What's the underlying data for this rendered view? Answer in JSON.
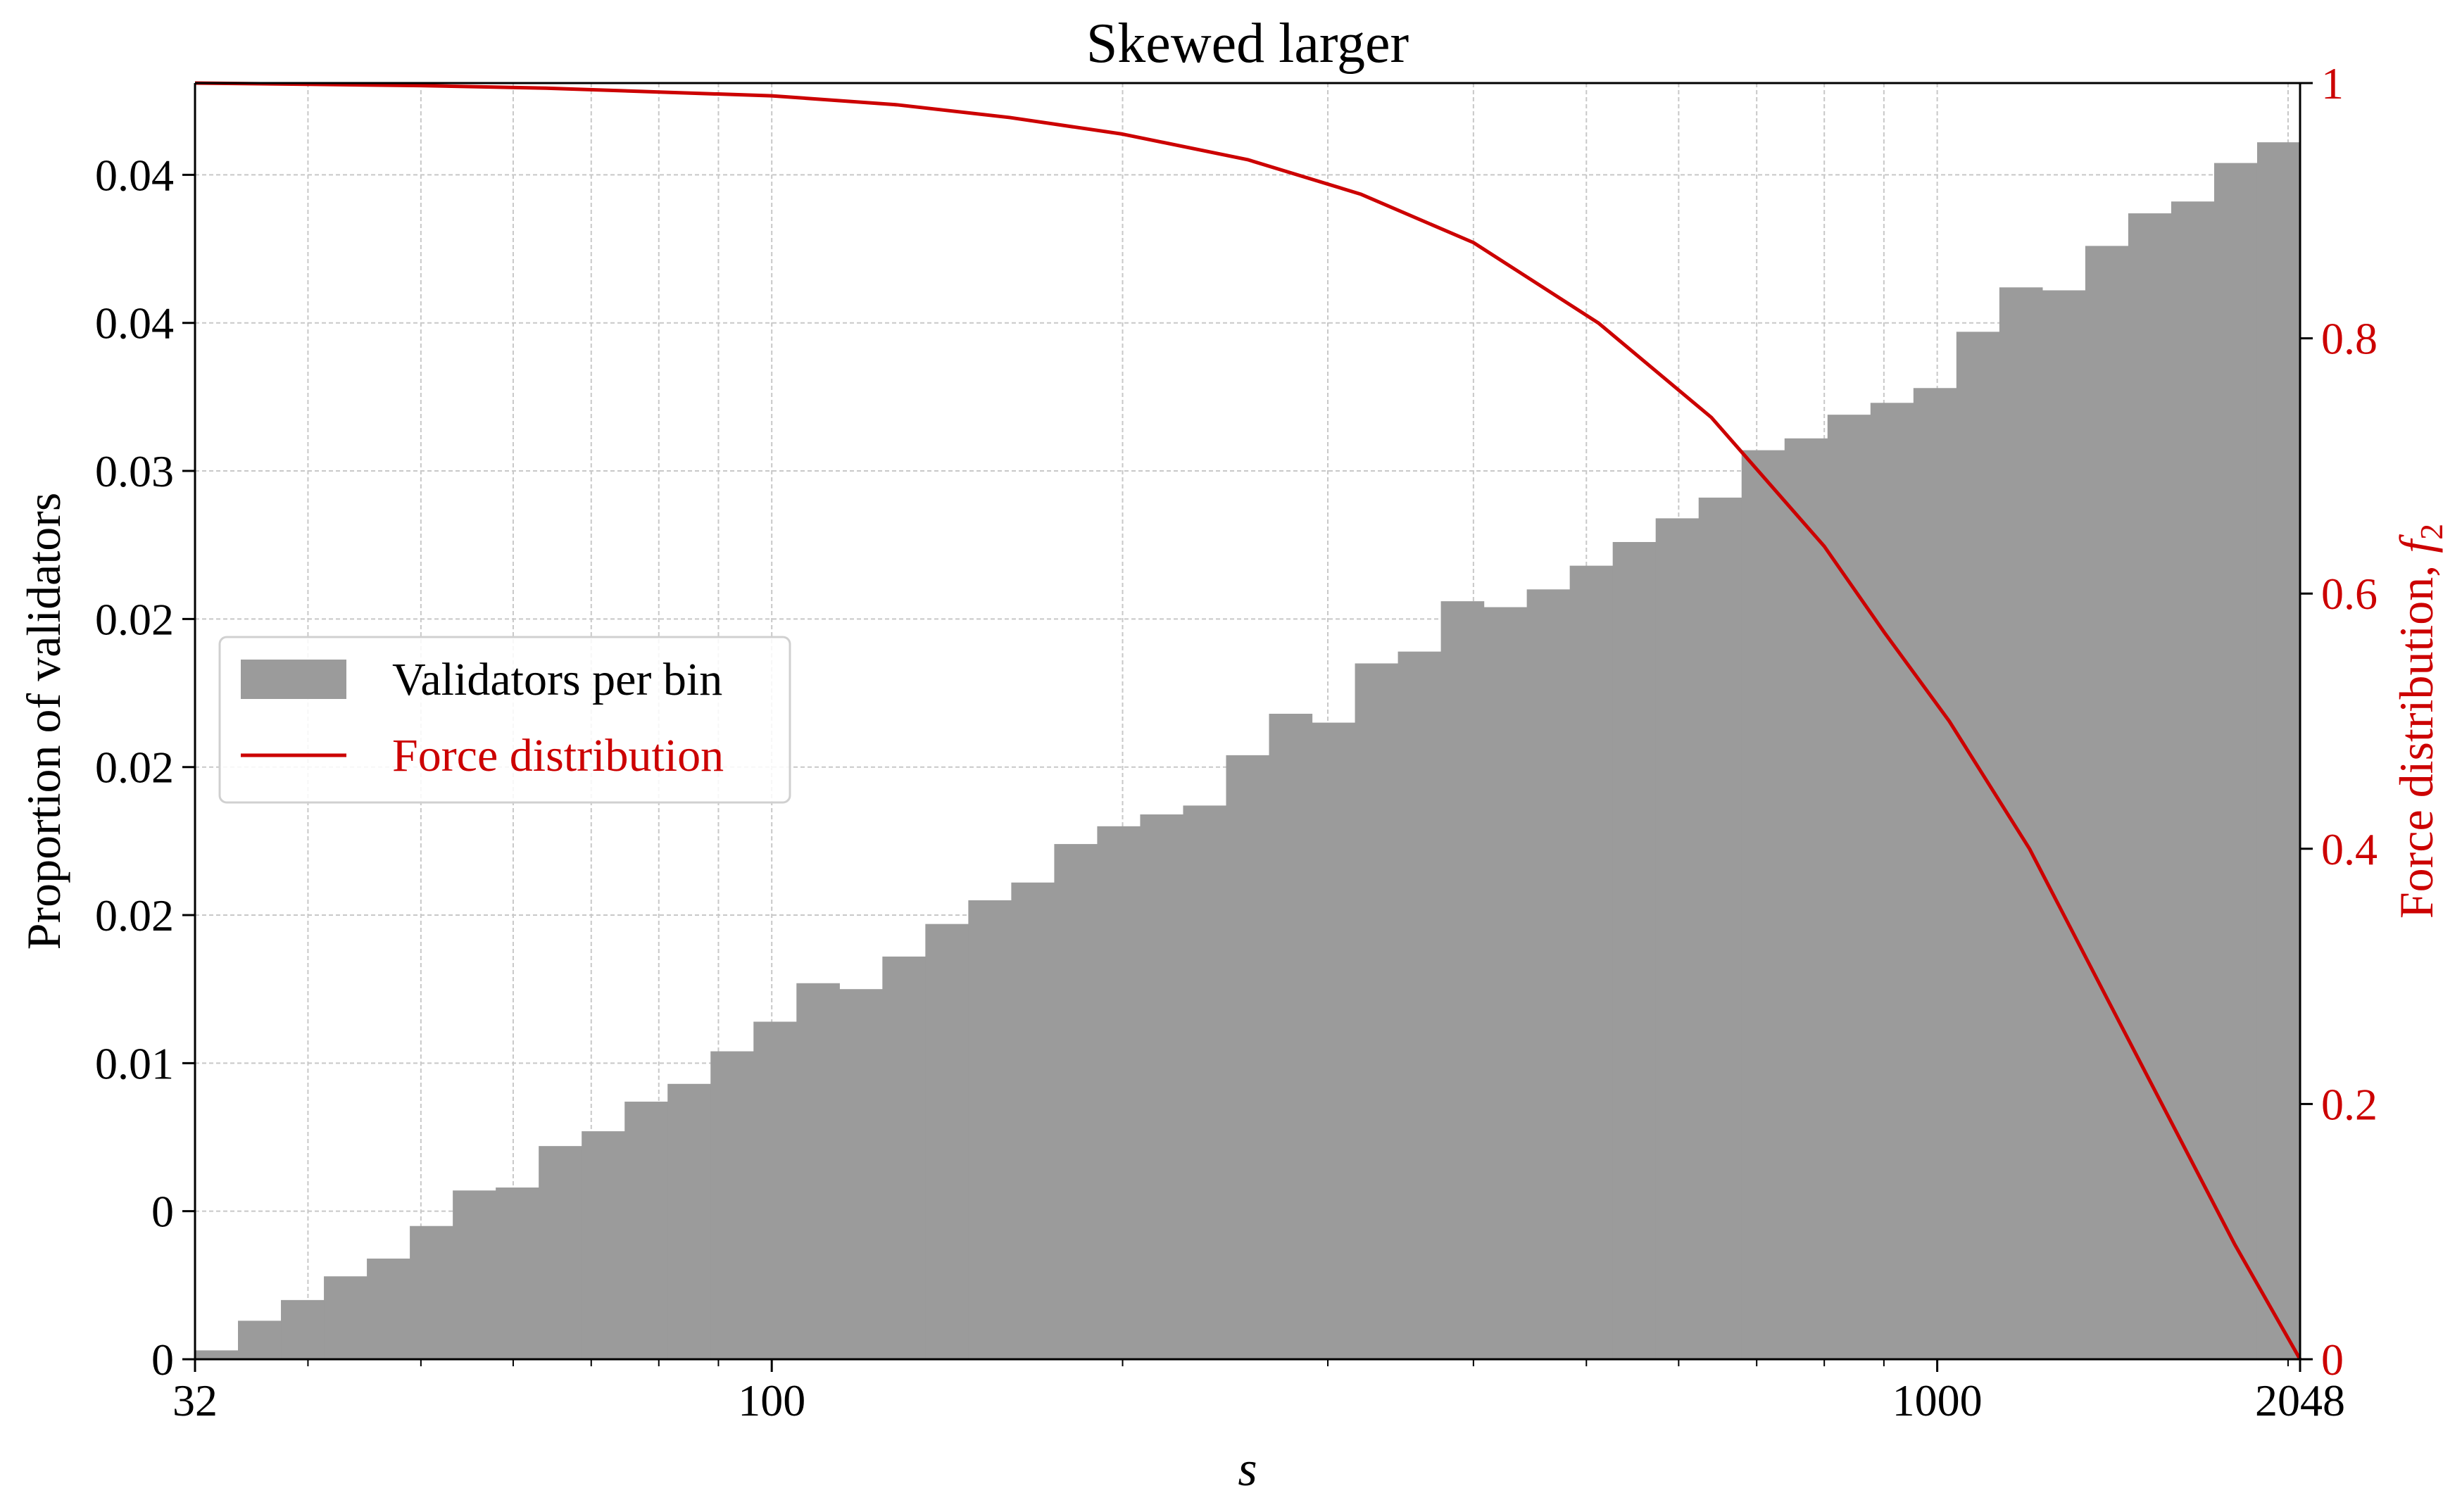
{
  "chart_data": {
    "type": "bar",
    "title": "Skewed larger",
    "xlabel": "s",
    "ylabel": "Proportion of validators",
    "y2label": "Force distribution, ",
    "y2label_math": "f",
    "y2label_sub": "2",
    "x_scale": "log2-binned, log-axis",
    "x_range": [
      32,
      2048
    ],
    "x_ticks": [
      {
        "value": 32,
        "label": "32"
      },
      {
        "value": 100,
        "label": "100"
      },
      {
        "value": 1000,
        "label": "1000"
      },
      {
        "value": 2048,
        "label": "2048"
      }
    ],
    "y_range": [
      0,
      0.0431
    ],
    "y_ticks": [
      {
        "value": 0.0,
        "label": "0"
      },
      {
        "value": 0.005,
        "label": "0"
      },
      {
        "value": 0.01,
        "label": "0.01"
      },
      {
        "value": 0.015,
        "label": "0.02"
      },
      {
        "value": 0.02,
        "label": "0.02"
      },
      {
        "value": 0.025,
        "label": "0.02"
      },
      {
        "value": 0.03,
        "label": "0.03"
      },
      {
        "value": 0.035,
        "label": "0.04"
      },
      {
        "value": 0.04,
        "label": "0.04"
      }
    ],
    "y2_range": [
      0,
      1
    ],
    "y2_ticks": [
      {
        "value": 0,
        "label": "0"
      },
      {
        "value": 0.2,
        "label": "0.2"
      },
      {
        "value": 0.4,
        "label": "0.4"
      },
      {
        "value": 0.6,
        "label": "0.6"
      },
      {
        "value": 0.8,
        "label": "0.8"
      },
      {
        "value": 1,
        "label": "1"
      }
    ],
    "grid": true,
    "legend_position": "center-left",
    "series": [
      {
        "name": "Validators per bin",
        "type": "bar",
        "color": "#9b9b9b",
        "values": [
          0.0003,
          0.0013,
          0.002,
          0.0028,
          0.0034,
          0.0045,
          0.0057,
          0.0058,
          0.0072,
          0.0077,
          0.0087,
          0.0093,
          0.0104,
          0.0114,
          0.0127,
          0.0125,
          0.0136,
          0.0147,
          0.0155,
          0.0161,
          0.0174,
          0.018,
          0.0184,
          0.0187,
          0.0204,
          0.0218,
          0.0215,
          0.0235,
          0.0239,
          0.0256,
          0.0254,
          0.026,
          0.0268,
          0.0276,
          0.0284,
          0.0291,
          0.0307,
          0.0311,
          0.0319,
          0.0323,
          0.0328,
          0.0347,
          0.0362,
          0.0361,
          0.0376,
          0.0387,
          0.0391,
          0.0404,
          0.0411
        ]
      },
      {
        "name": "Force distribution",
        "type": "line",
        "axis": "right",
        "color": "#cc0000",
        "x": [
          32,
          40,
          50,
          64,
          80,
          100,
          128,
          160,
          200,
          256,
          320,
          400,
          512,
          640,
          800,
          900,
          1024,
          1200,
          1400,
          1600,
          1800,
          2048
        ],
        "values": [
          1.0,
          0.999,
          0.998,
          0.996,
          0.993,
          0.99,
          0.983,
          0.973,
          0.96,
          0.94,
          0.913,
          0.875,
          0.812,
          0.738,
          0.637,
          0.57,
          0.5,
          0.4,
          0.282,
          0.18,
          0.09,
          0.0
        ]
      }
    ]
  }
}
